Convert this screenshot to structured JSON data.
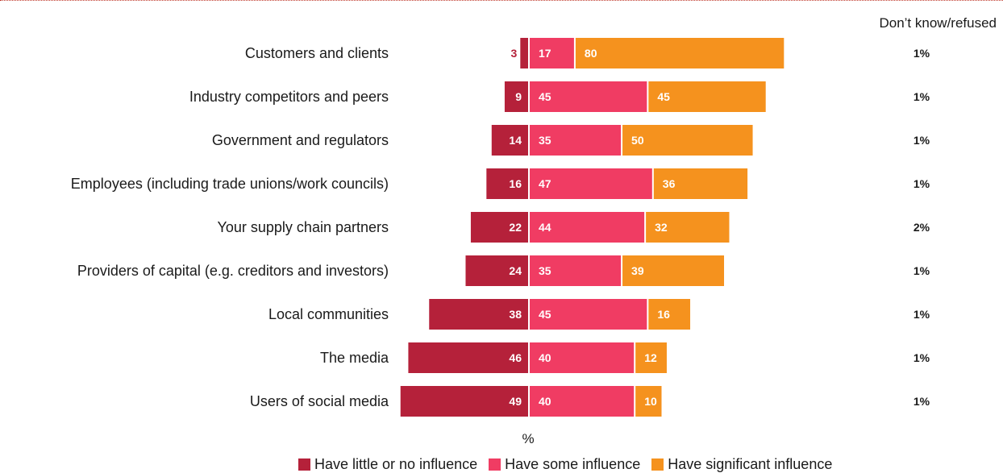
{
  "chart_data": {
    "type": "bar",
    "subtype": "diverging-stacked-horizontal",
    "categories": [
      "Customers and clients",
      "Industry competitors and peers",
      "Government and regulators",
      "Employees (including trade unions/work councils)",
      "Your supply chain partners",
      "Providers of capital (e.g. creditors and investors)",
      "Local communities",
      "The media",
      "Users of social media"
    ],
    "series": [
      {
        "name": "Have little or no influence",
        "color": "#b5213a",
        "values": [
          3,
          9,
          14,
          16,
          22,
          24,
          38,
          46,
          49
        ]
      },
      {
        "name": "Have some influence",
        "color": "#f03c63",
        "values": [
          17,
          45,
          35,
          47,
          44,
          35,
          45,
          40,
          40
        ]
      },
      {
        "name": "Have significant influence",
        "color": "#f5921e",
        "values": [
          80,
          45,
          50,
          36,
          32,
          39,
          16,
          12,
          10
        ]
      }
    ],
    "dont_know": {
      "header": "Don’t know/refused",
      "values": [
        "1%",
        "1%",
        "1%",
        "1%",
        "2%",
        "1%",
        "1%",
        "1%",
        "1%"
      ]
    },
    "unit_label": "%",
    "legend_position": "bottom",
    "grid": false
  }
}
